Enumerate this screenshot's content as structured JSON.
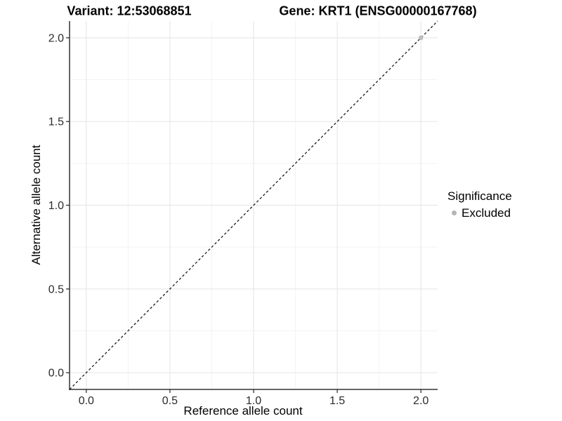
{
  "titles": {
    "variant": "Variant: 12:53068851",
    "gene": "Gene: KRT1 (ENSG00000167768)"
  },
  "axes": {
    "x_label": "Reference allele count",
    "y_label": "Alternative allele count"
  },
  "legend": {
    "title": "Significance",
    "items": [
      {
        "label": "Excluded",
        "color": "#b5b5b5"
      }
    ]
  },
  "colors": {
    "background": "#ffffff",
    "grid_major": "#e8e8e8",
    "grid_minor": "#f3f3f3",
    "axis_line": "#333333",
    "tick_label": "#2b2b2b",
    "identity_line": "#1a1a1a",
    "point": "#bdbdbd"
  },
  "chart_data": {
    "type": "scatter",
    "title": "Variant: 12:53068851    Gene: KRT1 (ENSG00000167768)",
    "xlabel": "Reference allele count",
    "ylabel": "Alternative allele count",
    "xlim": [
      -0.1,
      2.1
    ],
    "ylim": [
      -0.1,
      2.1
    ],
    "x_ticks": [
      0.0,
      0.5,
      1.0,
      1.5,
      2.0
    ],
    "x_tick_labels": [
      "0.0",
      "0.5",
      "1.0",
      "1.5",
      "2.0"
    ],
    "y_ticks": [
      0.0,
      0.5,
      1.0,
      1.5,
      2.0
    ],
    "y_tick_labels": [
      "0.0",
      "0.5",
      "1.0",
      "1.5",
      "2.0"
    ],
    "x_minor_ticks": [
      0.25,
      0.75,
      1.25,
      1.75
    ],
    "y_minor_ticks": [
      0.25,
      0.75,
      1.25,
      1.75
    ],
    "grid": true,
    "legend_position": "right",
    "legend_title": "Significance",
    "series": [
      {
        "name": "Excluded",
        "color": "#bdbdbd",
        "points": [
          {
            "x": 2.0,
            "y": 2.0
          }
        ]
      }
    ],
    "reference_line": {
      "kind": "identity",
      "style": "dashed",
      "from": [
        -0.1,
        -0.1
      ],
      "to": [
        2.1,
        2.1
      ]
    }
  }
}
